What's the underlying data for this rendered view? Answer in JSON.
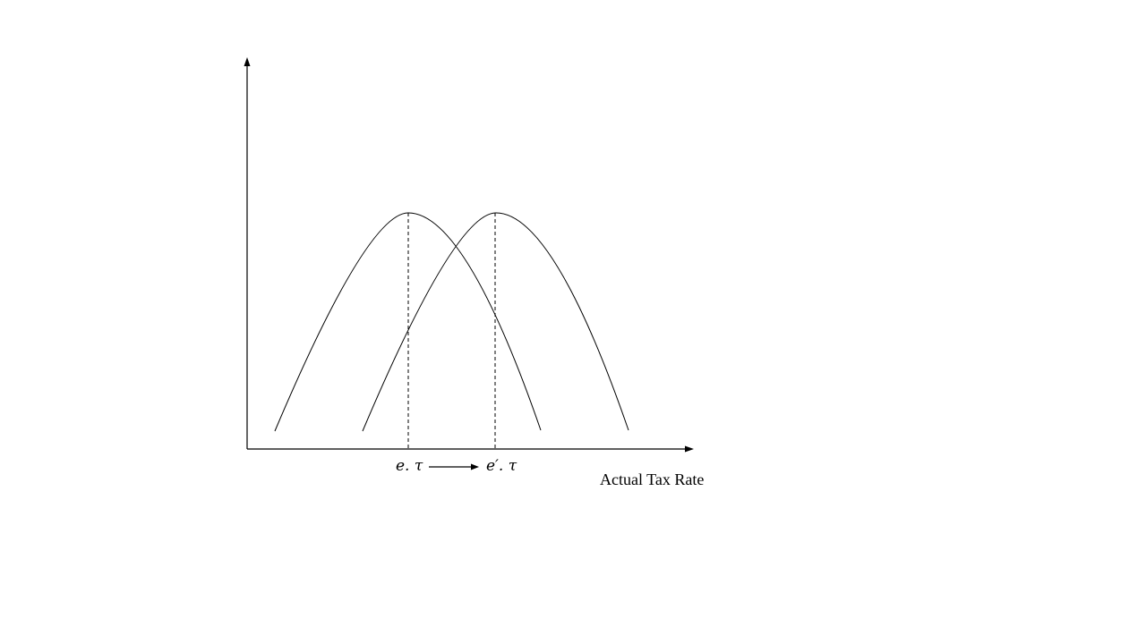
{
  "diagram": {
    "x_axis_label": "Actual Tax Rate",
    "peak_labels": {
      "left": "e. τ",
      "right": "e′. τ"
    },
    "colors": {
      "stroke": "#000000",
      "background": "#ffffff"
    }
  }
}
